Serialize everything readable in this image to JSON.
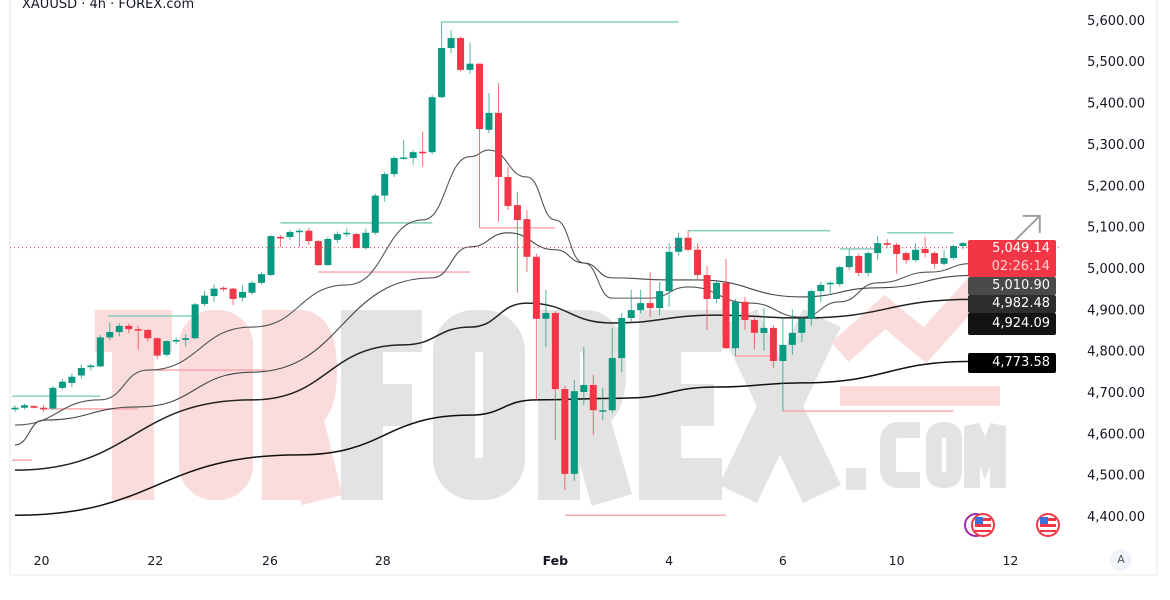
{
  "header": {
    "title": "XAUUSD · 4h · FOREX.com"
  },
  "watermark": "TORFOREX.COM",
  "colors": {
    "up": "#089981",
    "down": "#F23645",
    "ma": "#555555",
    "ma_slow": "#1a1a1a",
    "level_up": "#7fcdbb",
    "level_down": "#f7a1a8",
    "arrow": "#9e9e9e"
  },
  "price_badges": [
    {
      "value": "5,049.14",
      "sub": "02:26:14",
      "color": "#F23645"
    },
    {
      "value": "5,010.90",
      "color": "#4a4a4a"
    },
    {
      "value": "4,982.48",
      "color": "#2e2e2e"
    },
    {
      "value": "4,924.09",
      "color": "#131313"
    },
    {
      "value": "4,773.58",
      "color": "#000000"
    }
  ],
  "auto_scale_label": "A",
  "event_icons": [
    "us-flag-icon",
    "us-flag-icon"
  ],
  "chart_data": {
    "type": "candlestick",
    "title": "XAUUSD · 4h · FOREX.com",
    "ylim": [
      4330,
      5648
    ],
    "y_ticks": [
      {
        "value": 5600,
        "label": "5,600.00"
      },
      {
        "value": 5500,
        "label": "5,500.00"
      },
      {
        "value": 5400,
        "label": "5,400.00"
      },
      {
        "value": 5300,
        "label": "5,300.00"
      },
      {
        "value": 5200,
        "label": "5,200.00"
      },
      {
        "value": 5100,
        "label": "5,100.00"
      },
      {
        "value": 5000,
        "label": "5,000.00"
      },
      {
        "value": 4900,
        "label": "4,900.00"
      },
      {
        "value": 4800,
        "label": "4,800.00"
      },
      {
        "value": 4700,
        "label": "4,700.00"
      },
      {
        "value": 4600,
        "label": "4,600.00"
      },
      {
        "value": 4500,
        "label": "4,500.00"
      },
      {
        "value": 4400,
        "label": "4,400.00"
      }
    ],
    "x_ticks": [
      {
        "label": "20",
        "candle": 2.8
      },
      {
        "label": "22",
        "candle": 14.8
      },
      {
        "label": "26",
        "candle": 26.9
      },
      {
        "label": "28",
        "candle": 38.8
      },
      {
        "label": "Feb",
        "candle": 57
      },
      {
        "label": "4",
        "candle": 69
      },
      {
        "label": "6",
        "candle": 81
      },
      {
        "label": "10",
        "candle": 93
      },
      {
        "label": "12",
        "candle": 105
      }
    ],
    "candles": [
      [
        4658,
        4668,
        4652,
        4662
      ],
      [
        4662,
        4672,
        4658,
        4668
      ],
      [
        4666,
        4668,
        4660,
        4662
      ],
      [
        4662,
        4668,
        4652,
        4660
      ],
      [
        4660,
        4714,
        4658,
        4710
      ],
      [
        4710,
        4732,
        4705,
        4725
      ],
      [
        4722,
        4745,
        4712,
        4737
      ],
      [
        4740,
        4766,
        4733,
        4758
      ],
      [
        4760,
        4768,
        4752,
        4764
      ],
      [
        4762,
        4838,
        4760,
        4832
      ],
      [
        4832,
        4868,
        4825,
        4845
      ],
      [
        4845,
        4866,
        4835,
        4860
      ],
      [
        4860,
        4866,
        4843,
        4852
      ],
      [
        4852,
        4860,
        4802,
        4850
      ],
      [
        4850,
        4852,
        4822,
        4830
      ],
      [
        4830,
        4832,
        4780,
        4788
      ],
      [
        4790,
        4825,
        4785,
        4823
      ],
      [
        4822,
        4832,
        4815,
        4826
      ],
      [
        4826,
        4840,
        4810,
        4830
      ],
      [
        4830,
        4915,
        4828,
        4912
      ],
      [
        4913,
        4945,
        4908,
        4933
      ],
      [
        4932,
        4960,
        4918,
        4950
      ],
      [
        4952,
        4955,
        4943,
        4950
      ],
      [
        4950,
        4952,
        4910,
        4925
      ],
      [
        4928,
        4958,
        4920,
        4942
      ],
      [
        4940,
        4968,
        4935,
        4964
      ],
      [
        4964,
        4990,
        4960,
        4985
      ],
      [
        4983,
        5080,
        4980,
        5077
      ],
      [
        5075,
        5080,
        5050,
        5073
      ],
      [
        5075,
        5092,
        5068,
        5087
      ],
      [
        5087,
        5095,
        5050,
        5090
      ],
      [
        5090,
        5097,
        5055,
        5065
      ],
      [
        5065,
        5068,
        5005,
        5007
      ],
      [
        5007,
        5075,
        5005,
        5070
      ],
      [
        5068,
        5088,
        5060,
        5082
      ],
      [
        5082,
        5095,
        5075,
        5085
      ],
      [
        5082,
        5085,
        5048,
        5048
      ],
      [
        5048,
        5095,
        5045,
        5085
      ],
      [
        5085,
        5180,
        5080,
        5175
      ],
      [
        5175,
        5232,
        5160,
        5227
      ],
      [
        5227,
        5270,
        5220,
        5266
      ],
      [
        5266,
        5310,
        5262,
        5267
      ],
      [
        5266,
        5285,
        5250,
        5280
      ],
      [
        5281,
        5330,
        5245,
        5279
      ],
      [
        5280,
        5418,
        5275,
        5413
      ],
      [
        5413,
        5595,
        5410,
        5532
      ],
      [
        5532,
        5575,
        5520,
        5556
      ],
      [
        5556,
        5560,
        5475,
        5479
      ],
      [
        5479,
        5545,
        5470,
        5494
      ],
      [
        5494,
        5494,
        5097,
        5336
      ],
      [
        5334,
        5423,
        5325,
        5375
      ],
      [
        5375,
        5447,
        5111,
        5220
      ],
      [
        5220,
        5245,
        5140,
        5150
      ],
      [
        5152,
        5184,
        4940,
        5116
      ],
      [
        5118,
        5140,
        4990,
        5027
      ],
      [
        5027,
        5035,
        4681,
        4877
      ],
      [
        4877,
        4947,
        4809,
        4891
      ],
      [
        4891,
        4895,
        4584,
        4707
      ],
      [
        4707,
        4715,
        4463,
        4502
      ],
      [
        4502,
        4729,
        4485,
        4702
      ],
      [
        4700,
        4809,
        4668,
        4717
      ],
      [
        4717,
        4741,
        4596,
        4656
      ],
      [
        4656,
        4710,
        4632,
        4656
      ],
      [
        4656,
        4855,
        4650,
        4782
      ],
      [
        4782,
        4891,
        4748,
        4879
      ],
      [
        4879,
        4947,
        4870,
        4898
      ],
      [
        4898,
        4947,
        4890,
        4915
      ],
      [
        4915,
        4990,
        4881,
        4903
      ],
      [
        4903,
        4966,
        4885,
        4944
      ],
      [
        4944,
        5060,
        4906,
        5039
      ],
      [
        5039,
        5085,
        5030,
        5073
      ],
      [
        5073,
        5090,
        5040,
        5044
      ],
      [
        5044,
        5060,
        4970,
        4983
      ],
      [
        4983,
        5005,
        4850,
        4925
      ],
      [
        4925,
        4970,
        4915,
        4964
      ],
      [
        4964,
        5022,
        4804,
        4806
      ],
      [
        4806,
        4925,
        4787,
        4918
      ],
      [
        4918,
        4930,
        4850,
        4874
      ],
      [
        4874,
        4880,
        4802,
        4843
      ],
      [
        4843,
        4903,
        4800,
        4855
      ],
      [
        4855,
        4862,
        4758,
        4775
      ],
      [
        4775,
        4880,
        4654,
        4814
      ],
      [
        4814,
        4900,
        4790,
        4843
      ],
      [
        4843,
        4880,
        4820,
        4877
      ],
      [
        4877,
        4948,
        4860,
        4944
      ],
      [
        4944,
        4966,
        4917,
        4959
      ],
      [
        4962,
        4968,
        4935,
        4964
      ],
      [
        4961,
        5005,
        4955,
        5002
      ],
      [
        5002,
        5045,
        4995,
        5029
      ],
      [
        5029,
        5035,
        4980,
        4988
      ],
      [
        4988,
        5040,
        4980,
        5036
      ],
      [
        5036,
        5077,
        5020,
        5060
      ],
      [
        5060,
        5070,
        5050,
        5056
      ],
      [
        5056,
        5060,
        4986,
        5034
      ],
      [
        5036,
        5040,
        5010,
        5019
      ],
      [
        5019,
        5060,
        5015,
        5044
      ],
      [
        5046,
        5075,
        5025,
        5036
      ],
      [
        5036,
        5040,
        4998,
        5010
      ],
      [
        5010,
        5044,
        5005,
        5024
      ],
      [
        5024,
        5055,
        5020,
        5053
      ],
      [
        5053,
        5064,
        5045,
        5060
      ],
      [
        5060,
        5064,
        5045,
        5049
      ]
    ],
    "moving_averages": [
      {
        "last": "5,010.90",
        "color": "#555555",
        "points": [
          [
            0,
            4620
          ],
          [
            9,
            4681
          ],
          [
            14,
            4753
          ],
          [
            25,
            4857
          ],
          [
            35,
            4959
          ],
          [
            43,
            5116
          ],
          [
            48,
            5269
          ],
          [
            50,
            5285
          ],
          [
            54,
            5220
          ],
          [
            57,
            5116
          ],
          [
            60,
            5012
          ],
          [
            63,
            4927
          ],
          [
            67,
            4927
          ],
          [
            71,
            4954
          ],
          [
            77.5,
            4915
          ],
          [
            83,
            4881
          ],
          [
            87,
            4918
          ],
          [
            91,
            4964
          ],
          [
            96.5,
            4990
          ],
          [
            101,
            5011
          ]
        ]
      },
      {
        "last": "4,982.48",
        "color": "#444444",
        "points": [
          [
            0,
            4572
          ],
          [
            3,
            4632
          ],
          [
            13,
            4664
          ],
          [
            25,
            4748
          ],
          [
            44,
            4976
          ],
          [
            48,
            5051
          ],
          [
            52,
            5085
          ],
          [
            57,
            5044
          ],
          [
            60,
            5012
          ],
          [
            63,
            4976
          ],
          [
            69,
            4971
          ],
          [
            72,
            4971
          ],
          [
            83,
            4930
          ],
          [
            91,
            4952
          ],
          [
            101,
            4982
          ]
        ]
      },
      {
        "last": "4,924.09",
        "color": "#222222",
        "points": [
          [
            0,
            4511
          ],
          [
            25,
            4681
          ],
          [
            41,
            4814
          ],
          [
            48,
            4857
          ],
          [
            54,
            4915
          ],
          [
            63,
            4867
          ],
          [
            74,
            4886
          ],
          [
            83,
            4879
          ],
          [
            101,
            4924
          ]
        ]
      },
      {
        "last": "4,773.58",
        "color": "#111111",
        "points": [
          [
            0,
            4402
          ],
          [
            30,
            4548
          ],
          [
            48,
            4644
          ],
          [
            55,
            4681
          ],
          [
            64,
            4685
          ],
          [
            74,
            4712
          ],
          [
            83,
            4722
          ],
          [
            101,
            4774
          ]
        ]
      }
    ],
    "levels": [
      {
        "price": 5595,
        "from": 45,
        "to": 70,
        "dir": "up"
      },
      {
        "price": 5109,
        "from": 28,
        "to": 44,
        "dir": "up"
      },
      {
        "price": 4990,
        "from": 32,
        "to": 48,
        "dir": "down"
      },
      {
        "price": 4884,
        "from": 9.8,
        "to": 19,
        "dir": "up"
      },
      {
        "price": 4753,
        "from": 14,
        "to": 26.4,
        "dir": "down"
      },
      {
        "price": 4690,
        "from": -0.3,
        "to": 9,
        "dir": "up"
      },
      {
        "price": 4659,
        "from": 2.8,
        "to": 12.9,
        "dir": "down"
      },
      {
        "price": 4535,
        "from": -0.3,
        "to": 1.8,
        "dir": "down"
      },
      {
        "price": 5097,
        "from": 49,
        "to": 57,
        "dir": "down"
      },
      {
        "price": 4402,
        "from": 58,
        "to": 75,
        "dir": "down"
      },
      {
        "price": 5090,
        "from": 71,
        "to": 86,
        "dir": "up"
      },
      {
        "price": 4787,
        "from": 76,
        "to": 79.6,
        "dir": "down"
      },
      {
        "price": 4654,
        "from": 81,
        "to": 99,
        "dir": "down"
      },
      {
        "price": 5046,
        "from": 87,
        "to": 91.2,
        "dir": "up"
      },
      {
        "price": 5085,
        "from": 92,
        "to": 99,
        "dir": "up"
      }
    ],
    "current_price": {
      "value": 5049.14,
      "label": "5,049.14",
      "countdown": "02:26:14"
    },
    "projection_arrow": [
      [
        101.9,
        5048
      ],
      [
        103.1,
        5012
      ],
      [
        108.1,
        5126
      ]
    ]
  }
}
